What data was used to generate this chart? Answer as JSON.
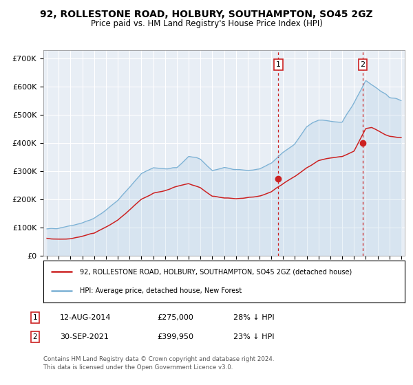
{
  "title": "92, ROLLESTONE ROAD, HOLBURY, SOUTHAMPTON, SO45 2GZ",
  "subtitle": "Price paid vs. HM Land Registry's House Price Index (HPI)",
  "title_fontsize": 10,
  "subtitle_fontsize": 8.5,
  "background_color": "#ffffff",
  "plot_bg_color": "#e8eef5",
  "grid_color": "#ffffff",
  "ylim": [
    0,
    730000
  ],
  "yticks": [
    0,
    100000,
    200000,
    300000,
    400000,
    500000,
    600000,
    700000
  ],
  "ytick_labels": [
    "£0",
    "£100K",
    "£200K",
    "£300K",
    "£400K",
    "£500K",
    "£600K",
    "£700K"
  ],
  "hpi_color": "#7ab0d4",
  "price_color": "#cc2222",
  "annotation1_date": "12-AUG-2014",
  "annotation1_price": "£275,000",
  "annotation1_pct": "28% ↓ HPI",
  "annotation2_date": "30-SEP-2021",
  "annotation2_price": "£399,950",
  "annotation2_pct": "23% ↓ HPI",
  "legend_label1": "92, ROLLESTONE ROAD, HOLBURY, SOUTHAMPTON, SO45 2GZ (detached house)",
  "legend_label2": "HPI: Average price, detached house, New Forest",
  "footer": "Contains HM Land Registry data © Crown copyright and database right 2024.\nThis data is licensed under the Open Government Licence v3.0.",
  "sale1_x": 2014.6,
  "sale1_y": 275000,
  "sale2_x": 2021.75,
  "sale2_y": 399950,
  "vline1_x": 2014.6,
  "vline2_x": 2021.75,
  "xmin": 1994.7,
  "xmax": 2025.3
}
